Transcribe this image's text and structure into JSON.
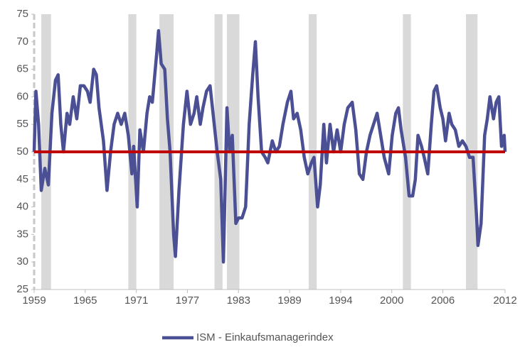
{
  "chart_data": {
    "type": "line",
    "x": [
      1959.0,
      1959.2,
      1959.5,
      1959.8,
      1960.2,
      1960.6,
      1961.0,
      1961.4,
      1961.7,
      1962.0,
      1962.3,
      1962.7,
      1963.0,
      1963.4,
      1963.8,
      1964.2,
      1964.6,
      1965.0,
      1965.3,
      1965.7,
      1966.0,
      1966.3,
      1966.8,
      1967.2,
      1967.6,
      1968.0,
      1968.4,
      1968.8,
      1969.2,
      1969.6,
      1970.0,
      1970.2,
      1970.6,
      1970.9,
      1971.3,
      1971.7,
      1972.0,
      1972.3,
      1972.8,
      1973.0,
      1973.3,
      1973.7,
      1974.0,
      1974.3,
      1974.7,
      1974.9,
      1975.3,
      1975.8,
      1976.2,
      1976.6,
      1977.0,
      1977.3,
      1977.7,
      1978.0,
      1978.4,
      1978.8,
      1979.2,
      1979.6,
      1980.0,
      1980.3,
      1980.7,
      1981.0,
      1981.3,
      1981.7,
      1982.0,
      1982.4,
      1982.8,
      1983.2,
      1983.6,
      1983.9,
      1984.2,
      1984.6,
      1985.0,
      1985.3,
      1985.8,
      1986.2,
      1986.6,
      1987.0,
      1987.5,
      1987.9,
      1988.2,
      1988.6,
      1989.0,
      1989.4,
      1989.8,
      1990.2,
      1990.5,
      1990.9,
      1991.2,
      1991.6,
      1991.9,
      1992.3,
      1992.7,
      1993.1,
      1993.5,
      1993.9,
      1994.3,
      1994.8,
      1995.2,
      1995.6,
      1996.0,
      1996.4,
      1996.8,
      1997.2,
      1997.6,
      1998.0,
      1998.4,
      1998.9,
      1999.3,
      1999.7,
      2000.0,
      2000.3,
      2000.8,
      2001.2,
      2001.6,
      2001.9,
      2002.2,
      2002.6,
      2002.9,
      2003.3,
      2003.7,
      2004.0,
      2004.3,
      2004.7,
      2005.0,
      2005.3,
      2005.7,
      2006.0,
      2006.4,
      2006.8,
      2007.2,
      2007.6,
      2008.0,
      2008.4,
      2008.8,
      2008.95,
      2009.3,
      2009.7,
      2010.0,
      2010.3,
      2010.7,
      2011.0,
      2011.3,
      2011.6,
      2011.9,
      2012.0
    ],
    "series": [
      {
        "name": "ISM - Einkaufsmanagerindex",
        "color": "#4b4f93",
        "values": [
          50,
          61,
          55,
          43,
          47,
          44,
          57,
          63,
          64,
          55,
          50,
          57,
          55,
          60,
          56,
          62,
          62,
          61,
          59,
          65,
          64,
          58,
          52,
          43,
          50,
          55,
          57,
          55,
          57,
          53,
          46,
          51,
          40,
          54,
          50,
          57,
          60,
          59,
          68,
          72,
          66,
          65,
          56,
          50,
          35,
          31,
          43,
          55,
          61,
          55,
          57,
          60,
          55,
          58,
          61,
          62,
          56,
          50,
          45,
          30,
          58,
          50,
          53,
          37,
          38,
          38,
          40,
          55,
          64,
          70,
          60,
          50,
          49,
          48,
          52,
          50,
          51,
          55,
          59,
          61,
          56,
          57,
          54,
          49,
          46,
          48,
          49,
          40,
          44,
          55,
          48,
          55,
          50,
          54,
          50,
          55,
          58,
          59,
          54,
          46,
          45,
          50,
          53,
          55,
          57,
          53,
          49,
          46,
          53,
          57,
          58,
          54,
          49,
          42,
          42,
          45,
          53,
          51,
          49,
          46,
          55,
          61,
          62,
          58,
          56,
          52,
          57,
          55,
          54,
          51,
          52,
          51,
          49,
          49,
          38,
          33,
          37,
          53,
          56,
          60,
          56,
          59,
          60,
          51,
          53,
          50
        ]
      }
    ],
    "xlim": [
      1959,
      2012
    ],
    "xticks": [
      1959,
      {
        "value": 1964.75,
        "label": "1965"
      },
      {
        "value": 1970.5,
        "label": "1971"
      },
      {
        "value": 1976.25,
        "label": "1977"
      },
      {
        "value": 1982,
        "label": "1983"
      },
      {
        "value": 1987.75,
        "label": "1989"
      },
      {
        "value": 1993.5,
        "label": "1994"
      },
      {
        "value": 1999.25,
        "label": "2000"
      },
      {
        "value": 2005,
        "label": "2006"
      },
      2012
    ],
    "ylim": [
      25,
      75
    ],
    "yticks": [
      25,
      30,
      35,
      40,
      45,
      50,
      55,
      60,
      65,
      70,
      75
    ],
    "grid": false,
    "reference_line": {
      "value": 50,
      "color": "#c00000"
    },
    "shaded_periods": [
      [
        1959.8,
        1960.9
      ],
      [
        1969.6,
        1970.5
      ],
      [
        1973.1,
        1974.7
      ],
      [
        1979.3,
        1980.2
      ],
      [
        1980.7,
        1982.1
      ],
      [
        1989.9,
        1990.8
      ],
      [
        2000.5,
        2001.4
      ],
      [
        2007.6,
        2008.9
      ]
    ],
    "shade_color": "#d9d9d9",
    "legend": "bottom"
  }
}
